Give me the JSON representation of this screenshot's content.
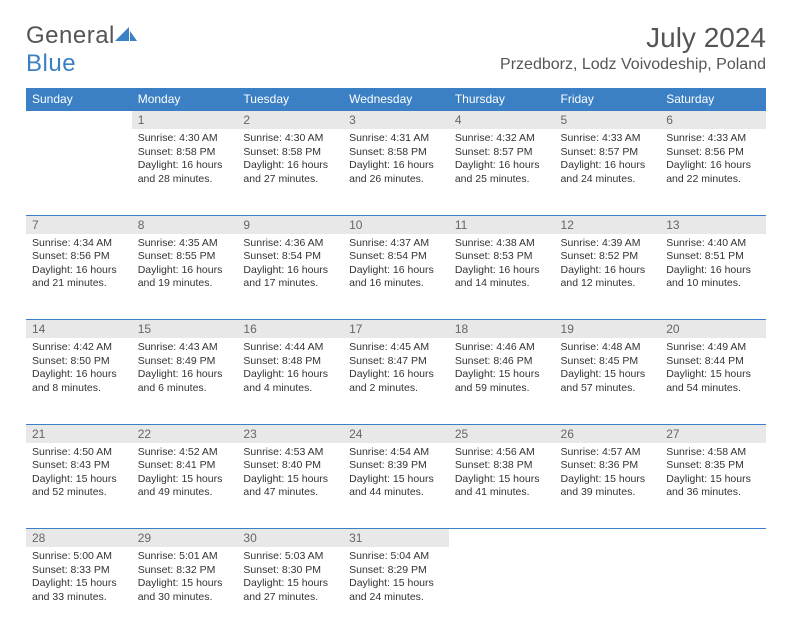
{
  "brand": {
    "name_part1": "General",
    "name_part2": "Blue"
  },
  "title": "July 2024",
  "location": "Przedborz, Lodz Voivodeship, Poland",
  "colors": {
    "header_bg": "#3b7fc4",
    "header_text": "#ffffff",
    "daynum_bg": "#e8e8e8",
    "daynum_text": "#666666",
    "body_text": "#333333",
    "title_text": "#555555",
    "brand_blue": "#3b7fc4",
    "brand_gray": "#555555",
    "border": "#3b7fc4"
  },
  "day_headers": [
    "Sunday",
    "Monday",
    "Tuesday",
    "Wednesday",
    "Thursday",
    "Friday",
    "Saturday"
  ],
  "weeks": [
    [
      {
        "empty": true
      },
      {
        "num": "1",
        "sunrise": "Sunrise: 4:30 AM",
        "sunset": "Sunset: 8:58 PM",
        "day1": "Daylight: 16 hours",
        "day2": "and 28 minutes."
      },
      {
        "num": "2",
        "sunrise": "Sunrise: 4:30 AM",
        "sunset": "Sunset: 8:58 PM",
        "day1": "Daylight: 16 hours",
        "day2": "and 27 minutes."
      },
      {
        "num": "3",
        "sunrise": "Sunrise: 4:31 AM",
        "sunset": "Sunset: 8:58 PM",
        "day1": "Daylight: 16 hours",
        "day2": "and 26 minutes."
      },
      {
        "num": "4",
        "sunrise": "Sunrise: 4:32 AM",
        "sunset": "Sunset: 8:57 PM",
        "day1": "Daylight: 16 hours",
        "day2": "and 25 minutes."
      },
      {
        "num": "5",
        "sunrise": "Sunrise: 4:33 AM",
        "sunset": "Sunset: 8:57 PM",
        "day1": "Daylight: 16 hours",
        "day2": "and 24 minutes."
      },
      {
        "num": "6",
        "sunrise": "Sunrise: 4:33 AM",
        "sunset": "Sunset: 8:56 PM",
        "day1": "Daylight: 16 hours",
        "day2": "and 22 minutes."
      }
    ],
    [
      {
        "num": "7",
        "sunrise": "Sunrise: 4:34 AM",
        "sunset": "Sunset: 8:56 PM",
        "day1": "Daylight: 16 hours",
        "day2": "and 21 minutes."
      },
      {
        "num": "8",
        "sunrise": "Sunrise: 4:35 AM",
        "sunset": "Sunset: 8:55 PM",
        "day1": "Daylight: 16 hours",
        "day2": "and 19 minutes."
      },
      {
        "num": "9",
        "sunrise": "Sunrise: 4:36 AM",
        "sunset": "Sunset: 8:54 PM",
        "day1": "Daylight: 16 hours",
        "day2": "and 17 minutes."
      },
      {
        "num": "10",
        "sunrise": "Sunrise: 4:37 AM",
        "sunset": "Sunset: 8:54 PM",
        "day1": "Daylight: 16 hours",
        "day2": "and 16 minutes."
      },
      {
        "num": "11",
        "sunrise": "Sunrise: 4:38 AM",
        "sunset": "Sunset: 8:53 PM",
        "day1": "Daylight: 16 hours",
        "day2": "and 14 minutes."
      },
      {
        "num": "12",
        "sunrise": "Sunrise: 4:39 AM",
        "sunset": "Sunset: 8:52 PM",
        "day1": "Daylight: 16 hours",
        "day2": "and 12 minutes."
      },
      {
        "num": "13",
        "sunrise": "Sunrise: 4:40 AM",
        "sunset": "Sunset: 8:51 PM",
        "day1": "Daylight: 16 hours",
        "day2": "and 10 minutes."
      }
    ],
    [
      {
        "num": "14",
        "sunrise": "Sunrise: 4:42 AM",
        "sunset": "Sunset: 8:50 PM",
        "day1": "Daylight: 16 hours",
        "day2": "and 8 minutes."
      },
      {
        "num": "15",
        "sunrise": "Sunrise: 4:43 AM",
        "sunset": "Sunset: 8:49 PM",
        "day1": "Daylight: 16 hours",
        "day2": "and 6 minutes."
      },
      {
        "num": "16",
        "sunrise": "Sunrise: 4:44 AM",
        "sunset": "Sunset: 8:48 PM",
        "day1": "Daylight: 16 hours",
        "day2": "and 4 minutes."
      },
      {
        "num": "17",
        "sunrise": "Sunrise: 4:45 AM",
        "sunset": "Sunset: 8:47 PM",
        "day1": "Daylight: 16 hours",
        "day2": "and 2 minutes."
      },
      {
        "num": "18",
        "sunrise": "Sunrise: 4:46 AM",
        "sunset": "Sunset: 8:46 PM",
        "day1": "Daylight: 15 hours",
        "day2": "and 59 minutes."
      },
      {
        "num": "19",
        "sunrise": "Sunrise: 4:48 AM",
        "sunset": "Sunset: 8:45 PM",
        "day1": "Daylight: 15 hours",
        "day2": "and 57 minutes."
      },
      {
        "num": "20",
        "sunrise": "Sunrise: 4:49 AM",
        "sunset": "Sunset: 8:44 PM",
        "day1": "Daylight: 15 hours",
        "day2": "and 54 minutes."
      }
    ],
    [
      {
        "num": "21",
        "sunrise": "Sunrise: 4:50 AM",
        "sunset": "Sunset: 8:43 PM",
        "day1": "Daylight: 15 hours",
        "day2": "and 52 minutes."
      },
      {
        "num": "22",
        "sunrise": "Sunrise: 4:52 AM",
        "sunset": "Sunset: 8:41 PM",
        "day1": "Daylight: 15 hours",
        "day2": "and 49 minutes."
      },
      {
        "num": "23",
        "sunrise": "Sunrise: 4:53 AM",
        "sunset": "Sunset: 8:40 PM",
        "day1": "Daylight: 15 hours",
        "day2": "and 47 minutes."
      },
      {
        "num": "24",
        "sunrise": "Sunrise: 4:54 AM",
        "sunset": "Sunset: 8:39 PM",
        "day1": "Daylight: 15 hours",
        "day2": "and 44 minutes."
      },
      {
        "num": "25",
        "sunrise": "Sunrise: 4:56 AM",
        "sunset": "Sunset: 8:38 PM",
        "day1": "Daylight: 15 hours",
        "day2": "and 41 minutes."
      },
      {
        "num": "26",
        "sunrise": "Sunrise: 4:57 AM",
        "sunset": "Sunset: 8:36 PM",
        "day1": "Daylight: 15 hours",
        "day2": "and 39 minutes."
      },
      {
        "num": "27",
        "sunrise": "Sunrise: 4:58 AM",
        "sunset": "Sunset: 8:35 PM",
        "day1": "Daylight: 15 hours",
        "day2": "and 36 minutes."
      }
    ],
    [
      {
        "num": "28",
        "sunrise": "Sunrise: 5:00 AM",
        "sunset": "Sunset: 8:33 PM",
        "day1": "Daylight: 15 hours",
        "day2": "and 33 minutes."
      },
      {
        "num": "29",
        "sunrise": "Sunrise: 5:01 AM",
        "sunset": "Sunset: 8:32 PM",
        "day1": "Daylight: 15 hours",
        "day2": "and 30 minutes."
      },
      {
        "num": "30",
        "sunrise": "Sunrise: 5:03 AM",
        "sunset": "Sunset: 8:30 PM",
        "day1": "Daylight: 15 hours",
        "day2": "and 27 minutes."
      },
      {
        "num": "31",
        "sunrise": "Sunrise: 5:04 AM",
        "sunset": "Sunset: 8:29 PM",
        "day1": "Daylight: 15 hours",
        "day2": "and 24 minutes."
      },
      {
        "empty": true
      },
      {
        "empty": true
      },
      {
        "empty": true
      }
    ]
  ]
}
